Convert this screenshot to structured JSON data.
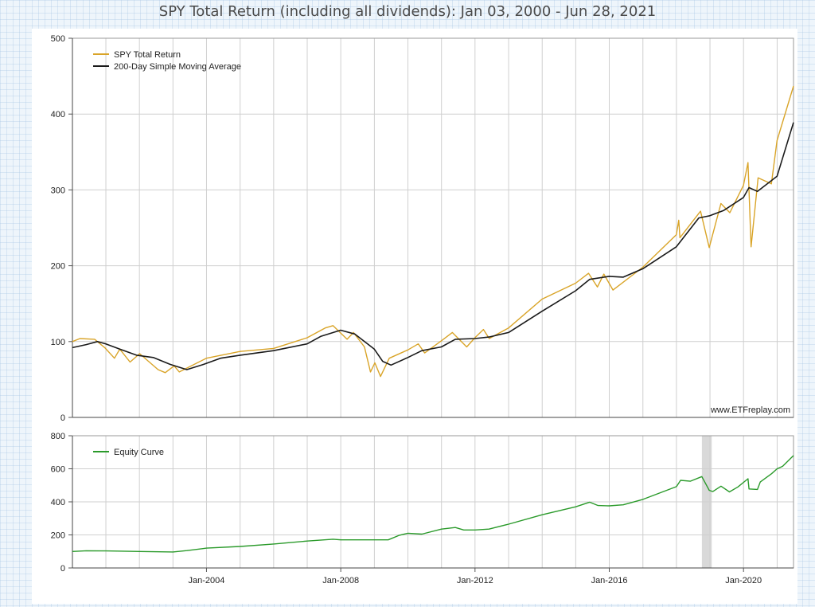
{
  "chart_data": [
    {
      "type": "line",
      "title": "SPY Total Return (including all dividends): Jan 03, 2000 - Jun 28, 2021",
      "watermark": "www.ETFreplay.com",
      "ylim": [
        0,
        500
      ],
      "yticks": [
        0,
        100,
        200,
        300,
        400,
        500
      ],
      "xlim": [
        "2000-01-03",
        "2021-06-28"
      ],
      "grid": true,
      "legend_position": "top-left",
      "series": [
        {
          "name": "SPY Total Return",
          "color": "#d9a428",
          "points": [
            [
              "2000-01-03",
              100
            ],
            [
              "2000-03-24",
              104
            ],
            [
              "2000-09-01",
              103
            ],
            [
              "2000-12-20",
              92
            ],
            [
              "2001-04-04",
              78
            ],
            [
              "2001-06-01",
              90
            ],
            [
              "2001-09-21",
              73
            ],
            [
              "2002-01-04",
              84
            ],
            [
              "2002-07-23",
              63
            ],
            [
              "2002-10-09",
              59
            ],
            [
              "2003-01-14",
              68
            ],
            [
              "2003-03-11",
              60
            ],
            [
              "2003-12-31",
              78
            ],
            [
              "2004-12-31",
              87
            ],
            [
              "2005-12-31",
              91
            ],
            [
              "2006-12-31",
              105
            ],
            [
              "2007-07-16",
              118
            ],
            [
              "2007-10-09",
              121
            ],
            [
              "2008-03-10",
              103
            ],
            [
              "2008-05-19",
              112
            ],
            [
              "2008-09-15",
              93
            ],
            [
              "2008-11-20",
              60
            ],
            [
              "2009-01-06",
              72
            ],
            [
              "2009-03-09",
              54
            ],
            [
              "2009-06-12",
              78
            ],
            [
              "2009-12-31",
              89
            ],
            [
              "2010-04-23",
              97
            ],
            [
              "2010-07-02",
              85
            ],
            [
              "2010-12-31",
              101
            ],
            [
              "2011-04-29",
              112
            ],
            [
              "2011-10-03",
              93
            ],
            [
              "2011-12-31",
              105
            ],
            [
              "2012-04-02",
              116
            ],
            [
              "2012-06-04",
              104
            ],
            [
              "2012-12-31",
              118
            ],
            [
              "2013-12-31",
              156
            ],
            [
              "2014-12-31",
              177
            ],
            [
              "2015-05-21",
              190
            ],
            [
              "2015-08-25",
              172
            ],
            [
              "2015-11-03",
              189
            ],
            [
              "2016-02-11",
              168
            ],
            [
              "2016-12-31",
              198
            ],
            [
              "2017-12-31",
              241
            ],
            [
              "2018-01-26",
              260
            ],
            [
              "2018-02-08",
              237
            ],
            [
              "2018-09-20",
              272
            ],
            [
              "2018-12-24",
              224
            ],
            [
              "2019-04-30",
              282
            ],
            [
              "2019-08-05",
              270
            ],
            [
              "2019-12-31",
              306
            ],
            [
              "2020-02-19",
              336
            ],
            [
              "2020-03-23",
              225
            ],
            [
              "2020-06-08",
              316
            ],
            [
              "2020-10-30",
              308
            ],
            [
              "2020-12-31",
              365
            ],
            [
              "2021-06-28",
              437
            ]
          ]
        },
        {
          "name": "200-Day Simple Moving Average",
          "color": "#1a1a1a",
          "points": [
            [
              "2000-01-03",
              92
            ],
            [
              "2000-06-01",
              96
            ],
            [
              "2000-10-01",
              100
            ],
            [
              "2001-01-01",
              97
            ],
            [
              "2001-06-01",
              90
            ],
            [
              "2001-12-01",
              82
            ],
            [
              "2002-06-01",
              79
            ],
            [
              "2002-12-01",
              70
            ],
            [
              "2003-06-01",
              63
            ],
            [
              "2003-12-01",
              70
            ],
            [
              "2004-06-01",
              78
            ],
            [
              "2005-01-01",
              82
            ],
            [
              "2005-12-31",
              88
            ],
            [
              "2006-12-31",
              97
            ],
            [
              "2007-06-01",
              107
            ],
            [
              "2007-12-31",
              115
            ],
            [
              "2008-06-01",
              110
            ],
            [
              "2008-12-31",
              90
            ],
            [
              "2009-04-01",
              74
            ],
            [
              "2009-07-01",
              69
            ],
            [
              "2009-12-31",
              79
            ],
            [
              "2010-06-01",
              88
            ],
            [
              "2010-12-31",
              93
            ],
            [
              "2011-06-01",
              103
            ],
            [
              "2011-12-31",
              104
            ],
            [
              "2012-06-01",
              106
            ],
            [
              "2012-12-31",
              112
            ],
            [
              "2013-12-31",
              140
            ],
            [
              "2014-12-31",
              167
            ],
            [
              "2015-06-01",
              182
            ],
            [
              "2015-12-31",
              186
            ],
            [
              "2016-06-01",
              185
            ],
            [
              "2016-12-31",
              196
            ],
            [
              "2017-12-31",
              225
            ],
            [
              "2018-09-01",
              263
            ],
            [
              "2018-12-31",
              266
            ],
            [
              "2019-06-01",
              273
            ],
            [
              "2019-12-31",
              290
            ],
            [
              "2020-03-01",
              303
            ],
            [
              "2020-06-01",
              298
            ],
            [
              "2020-12-31",
              318
            ],
            [
              "2021-06-28",
              389
            ]
          ]
        }
      ]
    },
    {
      "type": "line",
      "ylim": [
        0,
        800
      ],
      "yticks": [
        0,
        200,
        400,
        600,
        800
      ],
      "xlim": [
        "2000-01-03",
        "2021-06-28"
      ],
      "xticks": [
        {
          "date": "2004-01-01",
          "label": "Jan-2004"
        },
        {
          "date": "2008-01-01",
          "label": "Jan-2008"
        },
        {
          "date": "2012-01-01",
          "label": "Jan-2012"
        },
        {
          "date": "2016-01-01",
          "label": "Jan-2016"
        },
        {
          "date": "2020-01-01",
          "label": "Jan-2020"
        }
      ],
      "grid": true,
      "legend_position": "top-left",
      "shaded_period": [
        "2018-10-05",
        "2019-01-20"
      ],
      "series": [
        {
          "name": "Equity Curve",
          "color": "#2a9a2a",
          "points": [
            [
              "2000-01-03",
              100
            ],
            [
              "2000-06-01",
              104
            ],
            [
              "2001-01-01",
              103
            ],
            [
              "2002-01-01",
              100
            ],
            [
              "2003-01-01",
              97
            ],
            [
              "2003-06-01",
              105
            ],
            [
              "2004-01-01",
              120
            ],
            [
              "2005-01-01",
              130
            ],
            [
              "2006-01-01",
              145
            ],
            [
              "2007-01-01",
              163
            ],
            [
              "2007-10-09",
              174
            ],
            [
              "2008-01-01",
              170
            ],
            [
              "2008-06-01",
              170
            ],
            [
              "2009-06-01",
              170
            ],
            [
              "2009-10-01",
              198
            ],
            [
              "2010-01-01",
              210
            ],
            [
              "2010-06-01",
              205
            ],
            [
              "2011-01-01",
              235
            ],
            [
              "2011-06-01",
              245
            ],
            [
              "2011-09-01",
              230
            ],
            [
              "2012-01-01",
              230
            ],
            [
              "2012-06-01",
              235
            ],
            [
              "2013-01-01",
              265
            ],
            [
              "2014-01-01",
              322
            ],
            [
              "2015-01-01",
              370
            ],
            [
              "2015-06-01",
              398
            ],
            [
              "2015-09-01",
              378
            ],
            [
              "2016-01-01",
              376
            ],
            [
              "2016-06-01",
              382
            ],
            [
              "2017-01-01",
              415
            ],
            [
              "2018-01-01",
              492
            ],
            [
              "2018-02-15",
              530
            ],
            [
              "2018-06-01",
              525
            ],
            [
              "2018-10-04",
              553
            ],
            [
              "2018-12-24",
              470
            ],
            [
              "2019-02-01",
              462
            ],
            [
              "2019-05-01",
              495
            ],
            [
              "2019-08-01",
              460
            ],
            [
              "2019-11-01",
              490
            ],
            [
              "2020-02-19",
              540
            ],
            [
              "2020-03-01",
              478
            ],
            [
              "2020-06-01",
              475
            ],
            [
              "2020-07-01",
              520
            ],
            [
              "2020-11-01",
              570
            ],
            [
              "2021-01-01",
              600
            ],
            [
              "2021-03-01",
              615
            ],
            [
              "2021-06-28",
              680
            ]
          ]
        }
      ]
    }
  ]
}
